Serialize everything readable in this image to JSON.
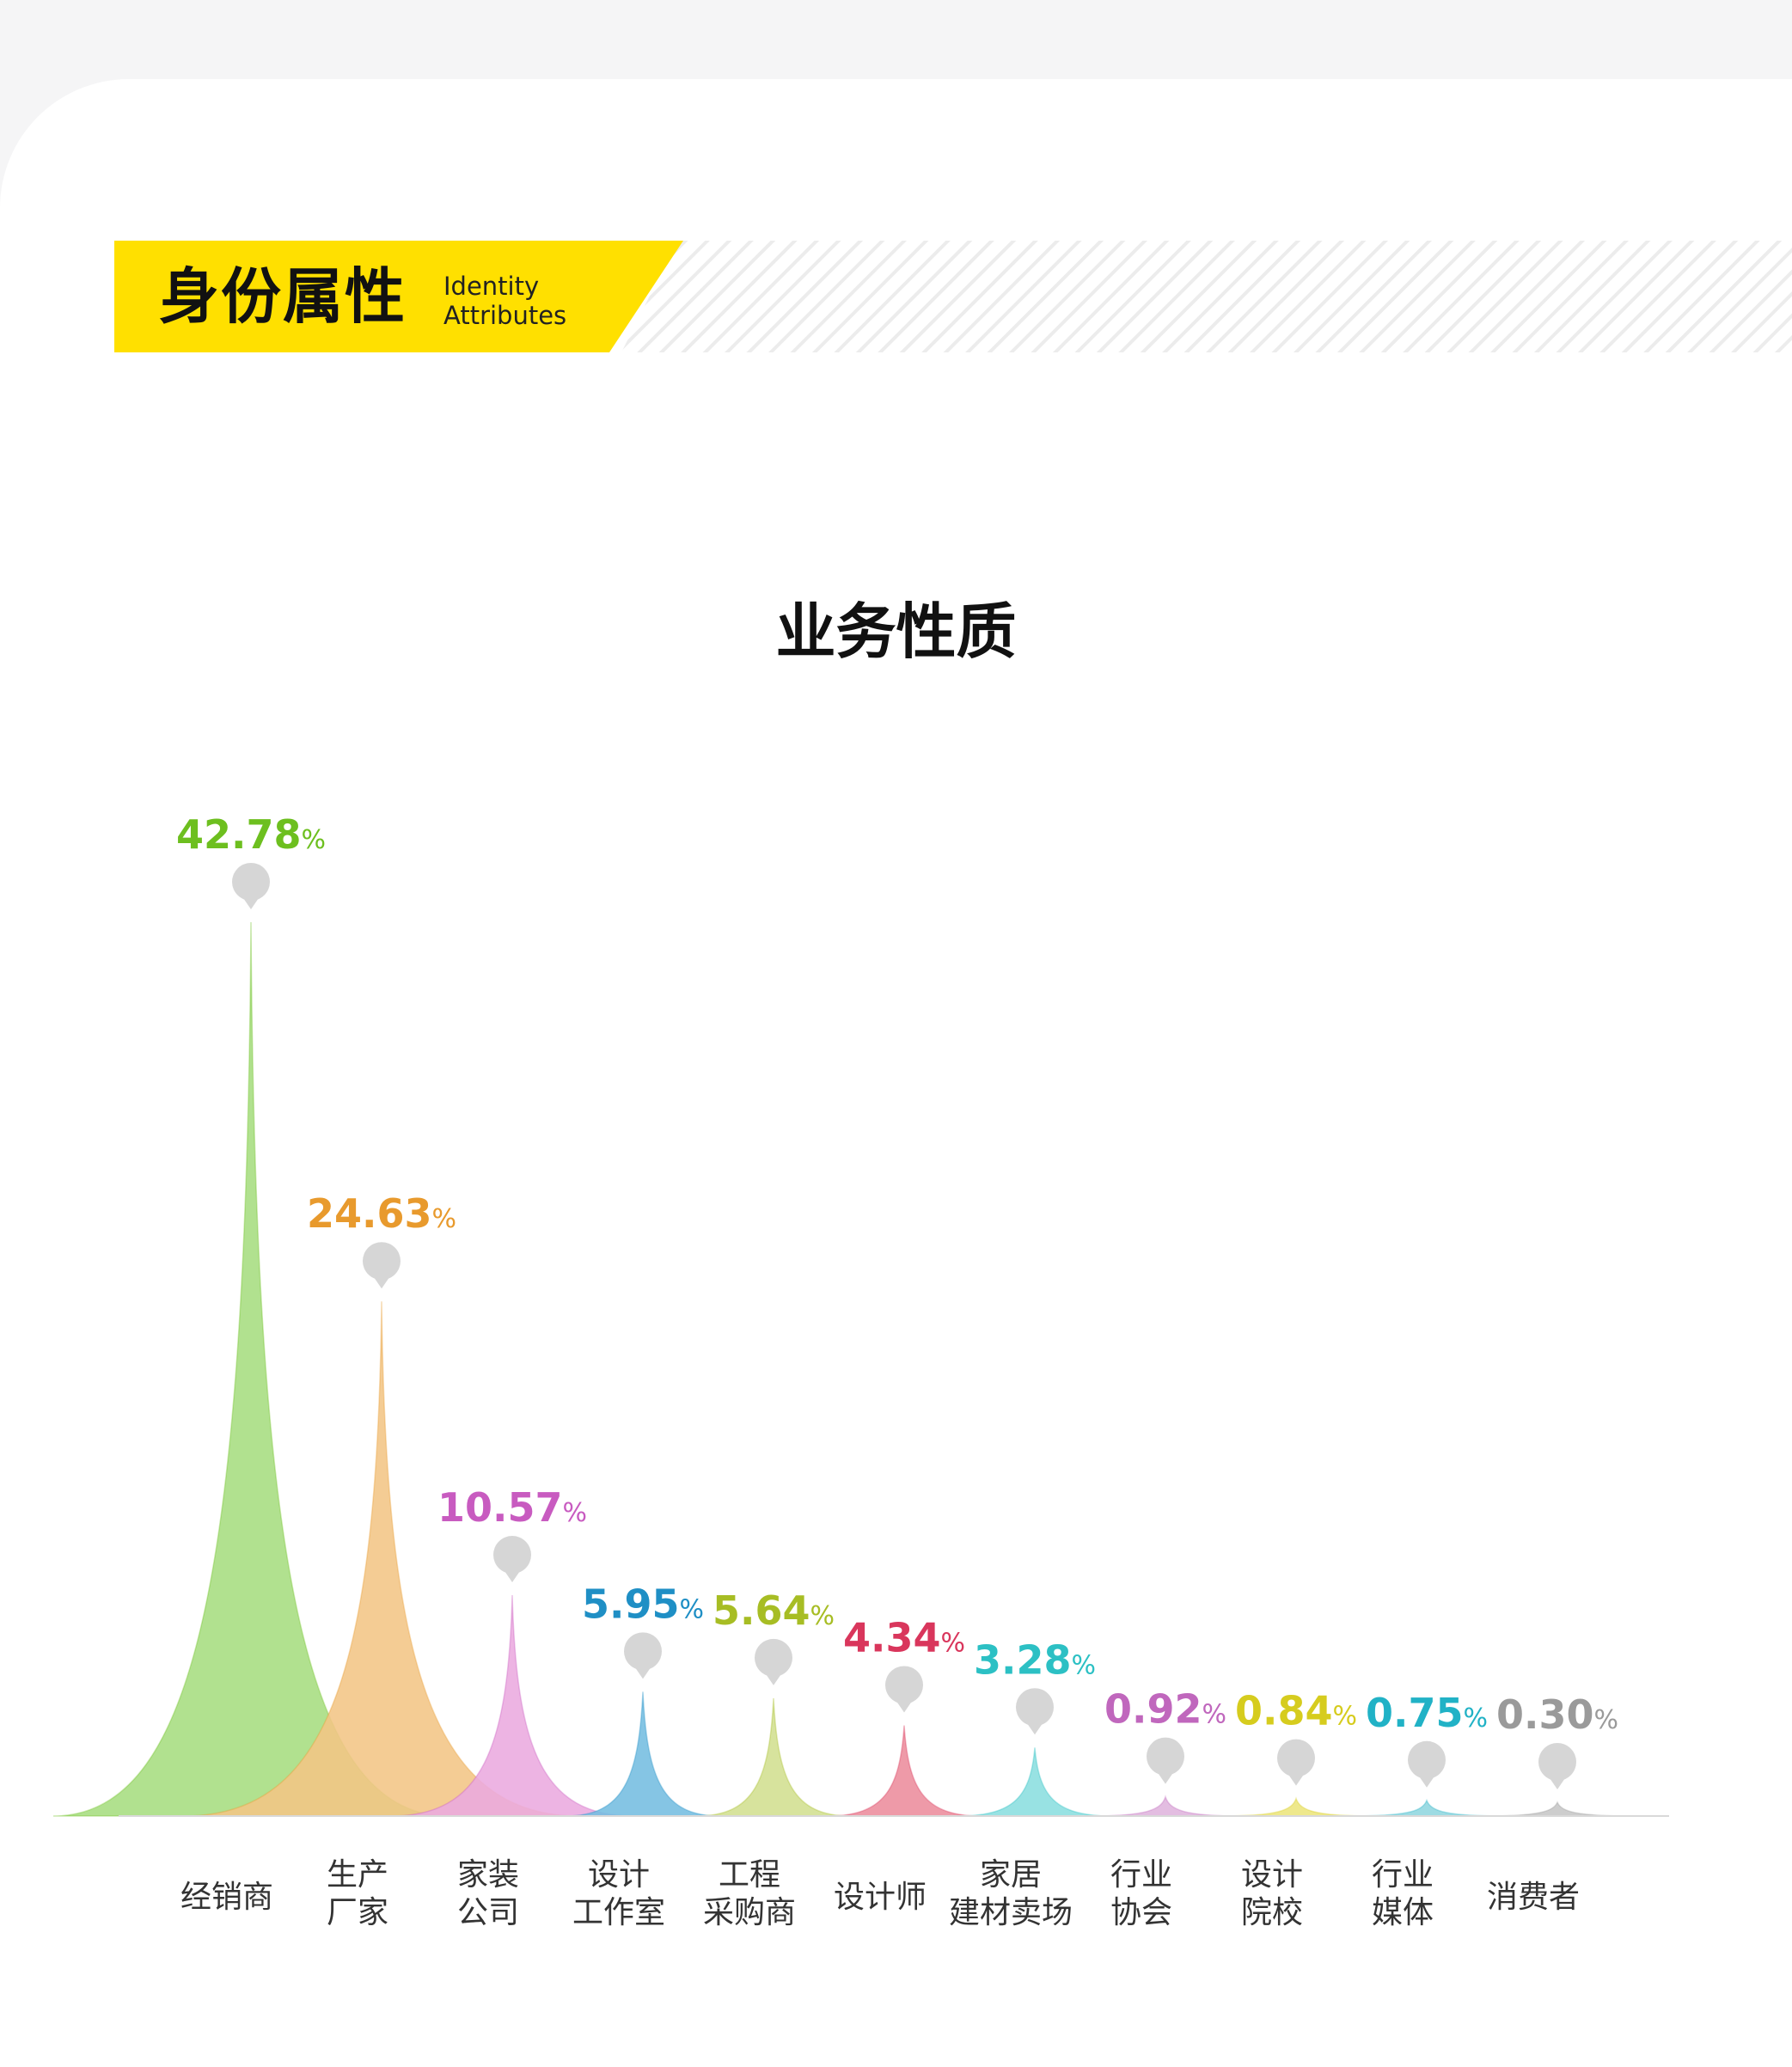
{
  "banner": {
    "title": "身份属性",
    "subtitle_line1": "Identity",
    "subtitle_line2": "Attributes",
    "accent_color": "#ffe000"
  },
  "section": {
    "title": "业务性质"
  },
  "chart_data": {
    "type": "area",
    "title": "业务性质",
    "unit": "%",
    "categories": [
      [
        "经销商"
      ],
      [
        "生产",
        "厂家"
      ],
      [
        "家装",
        "公司"
      ],
      [
        "设计",
        "工作室"
      ],
      [
        "工程",
        "采购商"
      ],
      [
        "设计师"
      ],
      [
        "家居",
        "建材卖场"
      ],
      [
        "行业",
        "协会"
      ],
      [
        "设计",
        "院校"
      ],
      [
        "行业",
        "媒体"
      ],
      [
        "消费者"
      ]
    ],
    "values": [
      42.78,
      24.63,
      10.57,
      5.95,
      5.64,
      4.34,
      3.28,
      0.92,
      0.84,
      0.75,
      0.3
    ],
    "value_labels": [
      "42.78",
      "24.63",
      "10.57",
      "5.95",
      "5.64",
      "4.34",
      "3.28",
      "0.92",
      "0.84",
      "0.75",
      "0.30"
    ],
    "colors": [
      "#6dbf1f",
      "#e89a2d",
      "#c85bc0",
      "#1f8fc5",
      "#a7bd24",
      "#d9365c",
      "#2cc0c4",
      "#c067bd",
      "#d6cc1e",
      "#21b2c6",
      "#9a9a9a"
    ],
    "fill_colors": [
      "#a6dd7f",
      "#f3c585",
      "#eaaadf",
      "#74bde0",
      "#d2df90",
      "#ec8c9c",
      "#8adedf",
      "#dfb4dd",
      "#ece57c",
      "#8fd6df",
      "#c6c6c6"
    ],
    "marker_icon": "location-pin-icon",
    "marker_color": "#d6d6d6",
    "grid": false,
    "legend": "none"
  }
}
